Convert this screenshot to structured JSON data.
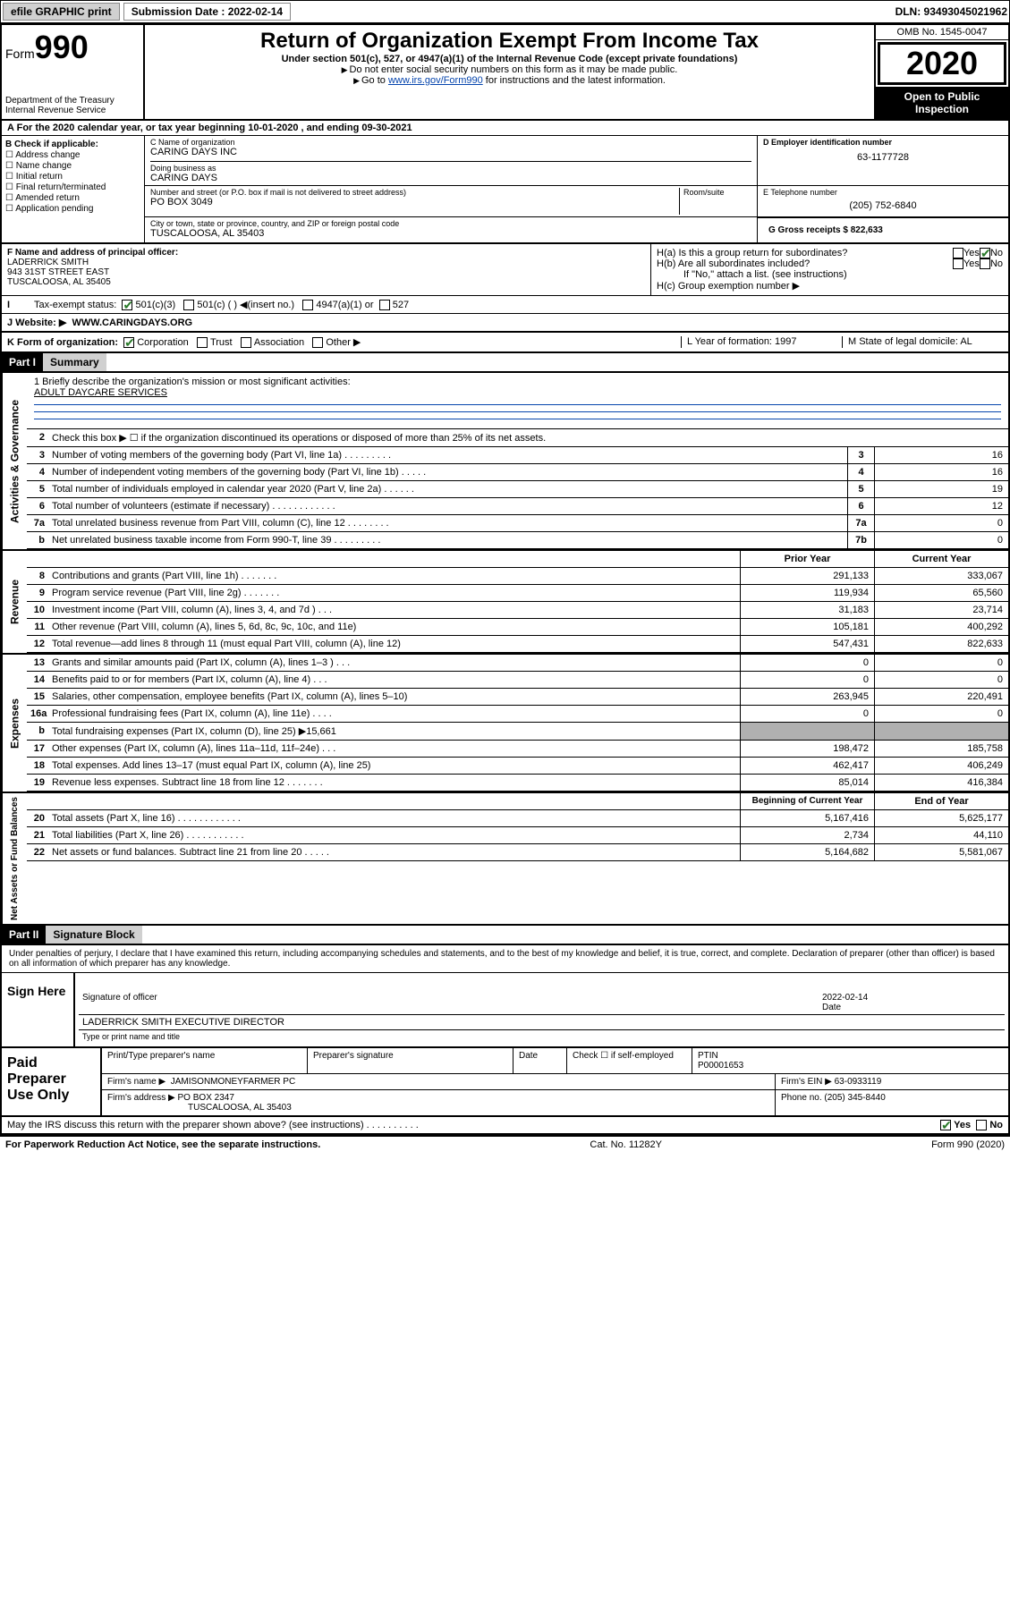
{
  "topbar": {
    "efile_label": "efile GRAPHIC print",
    "sub_label": "Submission Date : 2022-02-14",
    "dln": "DLN: 93493045021962"
  },
  "header": {
    "form_prefix": "Form",
    "form_num": "990",
    "dept": "Department of the Treasury Internal Revenue Service",
    "title": "Return of Organization Exempt From Income Tax",
    "subtitle": "Under section 501(c), 527, or 4947(a)(1) of the Internal Revenue Code (except private foundations)",
    "line1": "Do not enter social security numbers on this form as it may be made public.",
    "line2_pre": "Go to ",
    "line2_link": "www.irs.gov/Form990",
    "line2_post": " for instructions and the latest information.",
    "omb": "OMB No. 1545-0047",
    "year": "2020",
    "open_public": "Open to Public Inspection"
  },
  "row_a": "For the 2020 calendar year, or tax year beginning 10-01-2020    , and ending 09-30-2021",
  "col_b": {
    "header": "B Check if applicable:",
    "opts": [
      "Address change",
      "Name change",
      "Initial return",
      "Final return/terminated",
      "Amended return",
      "Application pending"
    ]
  },
  "col_c": {
    "name_label": "C Name of organization",
    "name": "CARING DAYS INC",
    "dba_label": "Doing business as",
    "dba": "CARING DAYS",
    "addr_label": "Number and street (or P.O. box if mail is not delivered to street address)",
    "room_label": "Room/suite",
    "addr": "PO BOX 3049",
    "city_label": "City or town, state or province, country, and ZIP or foreign postal code",
    "city": "TUSCALOOSA, AL  35403"
  },
  "col_d": {
    "ein_label": "D Employer identification number",
    "ein": "63-1177728",
    "phone_label": "E Telephone number",
    "phone": "(205) 752-6840",
    "gross_label": "G Gross receipts $ 822,633"
  },
  "col_f": {
    "label": "F  Name and address of principal officer:",
    "name": "LADERRICK SMITH",
    "addr1": "943 31ST STREET EAST",
    "addr2": "TUSCALOOSA, AL  35405"
  },
  "col_h": {
    "ha": "H(a)  Is this a group return for subordinates?",
    "hb": "H(b)  Are all subordinates included?",
    "hb_note": "If \"No,\" attach a list. (see instructions)",
    "hc": "H(c)  Group exemption number ▶",
    "yes": "Yes",
    "no": "No"
  },
  "row_i": {
    "label": "Tax-exempt status:",
    "opts": [
      "501(c)(3)",
      "501(c) (  ) ◀(insert no.)",
      "4947(a)(1) or",
      "527"
    ]
  },
  "row_j": {
    "label": "J   Website: ▶",
    "val": "WWW.CARINGDAYS.ORG"
  },
  "row_k": {
    "label": "K Form of organization:",
    "opts": [
      "Corporation",
      "Trust",
      "Association",
      "Other ▶"
    ],
    "l_label": "L Year of formation: 1997",
    "m_label": "M State of legal domicile: AL"
  },
  "part1": {
    "hdr": "Part I",
    "title": "Summary"
  },
  "vtabs": {
    "gov": "Activities & Governance",
    "rev": "Revenue",
    "exp": "Expenses",
    "net": "Net Assets or Fund Balances"
  },
  "mission": {
    "label": "1  Briefly describe the organization's mission or most significant activities:",
    "text": "ADULT DAYCARE SERVICES"
  },
  "gov_lines": [
    {
      "num": "2",
      "desc": "Check this box ▶ ☐  if the organization discontinued its operations or disposed of more than 25% of its net assets."
    },
    {
      "num": "3",
      "desc": "Number of voting members of the governing body (Part VI, line 1a)   .    .    .    .    .    .    .    .    .",
      "box": "3",
      "val": "16"
    },
    {
      "num": "4",
      "desc": "Number of independent voting members of the governing body (Part VI, line 1b)   .    .    .    .    .",
      "box": "4",
      "val": "16"
    },
    {
      "num": "5",
      "desc": "Total number of individuals employed in calendar year 2020 (Part V, line 2a)   .    .    .    .    .    .",
      "box": "5",
      "val": "19"
    },
    {
      "num": "6",
      "desc": "Total number of volunteers (estimate if necessary)   .    .    .    .    .    .    .    .    .    .    .    .",
      "box": "6",
      "val": "12"
    },
    {
      "num": "7a",
      "desc": "Total unrelated business revenue from Part VIII, column (C), line 12   .    .    .    .    .    .    .    .",
      "box": "7a",
      "val": "0"
    },
    {
      "num": "b",
      "desc": "Net unrelated business taxable income from Form 990-T, line 39   .    .    .    .    .    .    .    .    .",
      "box": "7b",
      "val": "0"
    }
  ],
  "two_col_hdr": {
    "prior": "Prior Year",
    "current": "Current Year"
  },
  "rev_lines": [
    {
      "num": "8",
      "desc": "Contributions and grants (Part VIII, line 1h)   .    .    .    .    .    .    .",
      "p": "291,133",
      "c": "333,067"
    },
    {
      "num": "9",
      "desc": "Program service revenue (Part VIII, line 2g)   .    .    .    .    .    .    .",
      "p": "119,934",
      "c": "65,560"
    },
    {
      "num": "10",
      "desc": "Investment income (Part VIII, column (A), lines 3, 4, and 7d )   .    .    .",
      "p": "31,183",
      "c": "23,714"
    },
    {
      "num": "11",
      "desc": "Other revenue (Part VIII, column (A), lines 5, 6d, 8c, 9c, 10c, and 11e)",
      "p": "105,181",
      "c": "400,292"
    },
    {
      "num": "12",
      "desc": "Total revenue—add lines 8 through 11 (must equal Part VIII, column (A), line 12)",
      "p": "547,431",
      "c": "822,633"
    }
  ],
  "exp_lines": [
    {
      "num": "13",
      "desc": "Grants and similar amounts paid (Part IX, column (A), lines 1–3 )   .    .    .",
      "p": "0",
      "c": "0"
    },
    {
      "num": "14",
      "desc": "Benefits paid to or for members (Part IX, column (A), line 4)   .    .    .",
      "p": "0",
      "c": "0"
    },
    {
      "num": "15",
      "desc": "Salaries, other compensation, employee benefits (Part IX, column (A), lines 5–10)",
      "p": "263,945",
      "c": "220,491"
    },
    {
      "num": "16a",
      "desc": "Professional fundraising fees (Part IX, column (A), line 11e)   .    .    .    .",
      "p": "0",
      "c": "0"
    },
    {
      "num": "b",
      "desc": "Total fundraising expenses (Part IX, column (D), line 25) ▶15,661",
      "p": "",
      "c": "",
      "shade": true
    },
    {
      "num": "17",
      "desc": "Other expenses (Part IX, column (A), lines 11a–11d, 11f–24e)   .    .    .",
      "p": "198,472",
      "c": "185,758"
    },
    {
      "num": "18",
      "desc": "Total expenses. Add lines 13–17 (must equal Part IX, column (A), line 25)",
      "p": "462,417",
      "c": "406,249"
    },
    {
      "num": "19",
      "desc": "Revenue less expenses. Subtract line 18 from line 12   .    .    .    .    .    .    .",
      "p": "85,014",
      "c": "416,384"
    }
  ],
  "net_hdr": {
    "prior": "Beginning of Current Year",
    "current": "End of Year"
  },
  "net_lines": [
    {
      "num": "20",
      "desc": "Total assets (Part X, line 16)   .    .    .    .    .    .    .    .    .    .    .    .",
      "p": "5,167,416",
      "c": "5,625,177"
    },
    {
      "num": "21",
      "desc": "Total liabilities (Part X, line 26)   .    .    .    .    .    .    .    .    .    .    .",
      "p": "2,734",
      "c": "44,110"
    },
    {
      "num": "22",
      "desc": "Net assets or fund balances. Subtract line 21 from line 20   .    .    .    .    .",
      "p": "5,164,682",
      "c": "5,581,067"
    }
  ],
  "part2": {
    "hdr": "Part II",
    "title": "Signature Block"
  },
  "sig_disclaimer": "Under penalties of perjury, I declare that I have examined this return, including accompanying schedules and statements, and to the best of my knowledge and belief, it is true, correct, and complete. Declaration of preparer (other than officer) is based on all information of which preparer has any knowledge.",
  "sign_here": "Sign Here",
  "sig_officer_label": "Signature of officer",
  "sig_date_label": "Date",
  "sig_date": "2022-02-14",
  "sig_name": "LADERRICK SMITH  EXECUTIVE DIRECTOR",
  "sig_name_label": "Type or print name and title",
  "paid_label": "Paid Preparer Use Only",
  "paid": {
    "col1": "Print/Type preparer's name",
    "col2": "Preparer's signature",
    "col3": "Date",
    "col4_chk": "Check ☐ if self-employed",
    "col5_label": "PTIN",
    "ptin": "P00001653",
    "firm_name_label": "Firm's name    ▶",
    "firm_name": "JAMISONMONEYFARMER PC",
    "firm_ein_label": "Firm's EIN ▶",
    "firm_ein": "63-0933119",
    "firm_addr_label": "Firm's address ▶",
    "firm_addr1": "PO BOX 2347",
    "firm_addr2": "TUSCALOOSA, AL  35403",
    "phone_label": "Phone no.",
    "phone": "(205) 345-8440"
  },
  "discuss": "May the IRS discuss this return with the preparer shown above? (see instructions)   .    .    .    .    .    .    .    .    .    .",
  "footer": {
    "paperwork": "For Paperwork Reduction Act Notice, see the separate instructions.",
    "cat": "Cat. No. 11282Y",
    "form": "Form 990 (2020)"
  }
}
